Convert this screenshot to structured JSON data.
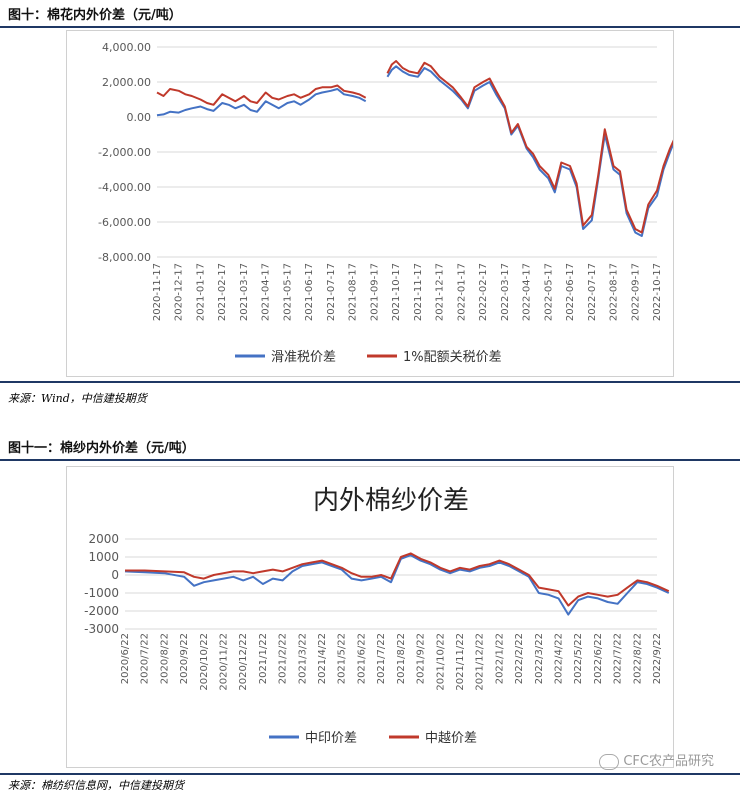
{
  "figures": [
    {
      "title": "图十：棉花内外价差（元/吨）",
      "source": "来源：Wind，中信建投期货"
    },
    {
      "title": "图十一：棉纱内外价差（元/吨）",
      "source": "来源：棉纺织信息网，中信建投期货"
    }
  ],
  "watermark": "CFC农产品研究",
  "chart_data": [
    {
      "type": "line",
      "title": "",
      "xlabel": "",
      "ylabel": "",
      "ylim": [
        -8000,
        4000
      ],
      "yticks": [
        "4,000.00",
        "2,000.00",
        "0.00",
        "-2,000.00",
        "-4,000.00",
        "-6,000.00",
        "-8,000.00"
      ],
      "ytick_values": [
        4000,
        2000,
        0,
        -2000,
        -4000,
        -6000,
        -8000
      ],
      "xticks": [
        "2020-11-17",
        "2020-12-17",
        "2021-01-17",
        "2021-02-17",
        "2021-03-17",
        "2021-04-17",
        "2021-05-17",
        "2021-06-17",
        "2021-07-17",
        "2021-08-17",
        "2021-09-17",
        "2021-10-17",
        "2021-11-17",
        "2021-12-17",
        "2022-01-17",
        "2022-02-17",
        "2022-03-17",
        "2022-04-17",
        "2022-05-17",
        "2022-06-17",
        "2022-07-17",
        "2022-08-17",
        "2022-09-17",
        "2022-10-17"
      ],
      "grid": "horizontal",
      "legend": "bottom",
      "colors": {
        "滑准税价差": "#4472c4",
        "1%配额关税价差": "#c0392b"
      },
      "series": [
        {
          "name": "滑准税价差",
          "x": [
            0,
            0.3,
            0.6,
            1.0,
            1.3,
            1.6,
            2.0,
            2.3,
            2.6,
            3.0,
            3.3,
            3.6,
            4.0,
            4.3,
            4.6,
            5.0,
            5.3,
            5.6,
            6.0,
            6.3,
            6.6,
            7.0,
            7.3,
            7.6,
            8.0,
            8.3,
            8.6,
            9.0,
            9.3,
            9.6,
            10.0,
            10.6,
            10.8,
            11.0,
            11.3,
            11.6,
            12.0,
            12.3,
            12.6,
            13.0,
            13.3,
            13.6,
            14.0,
            14.3,
            14.6,
            15.0,
            15.3,
            15.6,
            16.0,
            16.3,
            16.6,
            17.0,
            17.3,
            17.6,
            18.0,
            18.3,
            18.6,
            19.0,
            19.3,
            19.6,
            20.0,
            20.3,
            20.6,
            21.0,
            21.3,
            21.6,
            22.0,
            22.3,
            22.6,
            23.0,
            23.3,
            23.6,
            24.0
          ],
          "values": [
            100,
            150,
            300,
            250,
            400,
            500,
            600,
            450,
            350,
            800,
            700,
            500,
            700,
            400,
            300,
            900,
            700,
            500,
            800,
            900,
            700,
            1000,
            1300,
            1400,
            1500,
            1600,
            1300,
            1200,
            1100,
            900,
            null,
            2300,
            2700,
            2900,
            2600,
            2400,
            2300,
            2800,
            2600,
            2100,
            1800,
            1500,
            1000,
            500,
            1500,
            1800,
            2000,
            1300,
            500,
            -1000,
            -500,
            -1800,
            -2300,
            -3000,
            -3500,
            -4300,
            -2800,
            -3000,
            -4000,
            -6400,
            -5900,
            -3500,
            -1000,
            -3000,
            -3300,
            -5500,
            -6600,
            -6800,
            -5200,
            -4500,
            -3000,
            -2000,
            -800
          ]
        },
        {
          "name": "1%配额关税价差",
          "x": [
            0,
            0.3,
            0.6,
            1.0,
            1.3,
            1.6,
            2.0,
            2.3,
            2.6,
            3.0,
            3.3,
            3.6,
            4.0,
            4.3,
            4.6,
            5.0,
            5.3,
            5.6,
            6.0,
            6.3,
            6.6,
            7.0,
            7.3,
            7.6,
            8.0,
            8.3,
            8.6,
            9.0,
            9.3,
            9.6,
            10.0,
            10.6,
            10.8,
            11.0,
            11.3,
            11.6,
            12.0,
            12.3,
            12.6,
            13.0,
            13.3,
            13.6,
            14.0,
            14.3,
            14.6,
            15.0,
            15.3,
            15.6,
            16.0,
            16.3,
            16.6,
            17.0,
            17.3,
            17.6,
            18.0,
            18.3,
            18.6,
            19.0,
            19.3,
            19.6,
            20.0,
            20.3,
            20.6,
            21.0,
            21.3,
            21.6,
            22.0,
            22.3,
            22.6,
            23.0,
            23.3,
            23.6,
            24.0
          ],
          "values": [
            1400,
            1200,
            1600,
            1500,
            1300,
            1200,
            1000,
            800,
            700,
            1300,
            1100,
            900,
            1200,
            900,
            800,
            1400,
            1100,
            1000,
            1200,
            1300,
            1100,
            1300,
            1600,
            1700,
            1700,
            1800,
            1500,
            1400,
            1300,
            1100,
            null,
            2500,
            3000,
            3200,
            2800,
            2600,
            2500,
            3100,
            2900,
            2300,
            2000,
            1700,
            1100,
            600,
            1700,
            2000,
            2200,
            1500,
            600,
            -900,
            -400,
            -1700,
            -2100,
            -2800,
            -3300,
            -4100,
            -2600,
            -2800,
            -3800,
            -6200,
            -5600,
            -3300,
            -700,
            -2800,
            -3100,
            -5300,
            -6400,
            -6600,
            -5000,
            -4200,
            -2800,
            -1800,
            -700
          ]
        }
      ]
    },
    {
      "type": "line",
      "title": "内外棉纱价差",
      "xlabel": "",
      "ylabel": "",
      "ylim": [
        -3000,
        2000
      ],
      "yticks": [
        "2000",
        "1000",
        "0",
        "-1000",
        "-2000",
        "-3000"
      ],
      "ytick_values": [
        2000,
        1000,
        0,
        -1000,
        -2000,
        -3000
      ],
      "xticks": [
        "2020/6/22",
        "2020/7/22",
        "2020/8/22",
        "2020/9/22",
        "2020/10/22",
        "2020/11/22",
        "2020/12/22",
        "2021/1/22",
        "2021/2/22",
        "2021/3/22",
        "2021/4/22",
        "2021/5/22",
        "2021/6/22",
        "2021/7/22",
        "2021/8/22",
        "2021/9/22",
        "2021/10/22",
        "2021/11/22",
        "2021/12/22",
        "2022/1/22",
        "2022/2/22",
        "2022/3/22",
        "2022/4/22",
        "2022/5/22",
        "2022/6/22",
        "2022/7/22",
        "2022/8/22",
        "2022/9/22"
      ],
      "grid": "horizontal",
      "legend": "bottom",
      "colors": {
        "中印价差": "#4472c4",
        "中越价差": "#c0392b"
      },
      "series": [
        {
          "name": "中印价差",
          "x": [
            0,
            1,
            2,
            3,
            3.5,
            4,
            4.5,
            5,
            5.5,
            6,
            6.5,
            7,
            7.5,
            8,
            8.5,
            9,
            9.5,
            10,
            10.5,
            11,
            11.5,
            12,
            12.5,
            13,
            13.5,
            14,
            14.5,
            15,
            15.5,
            16,
            16.5,
            17,
            17.5,
            18,
            18.5,
            19,
            19.5,
            20,
            20.5,
            21,
            21.5,
            22,
            22.5,
            23,
            23.5,
            24,
            24.5,
            25,
            25.5,
            26,
            26.5,
            27,
            27.6
          ],
          "values": [
            200,
            150,
            100,
            -100,
            -600,
            -400,
            -300,
            -200,
            -100,
            -300,
            -100,
            -500,
            -200,
            -300,
            200,
            500,
            600,
            700,
            500,
            300,
            -200,
            -300,
            -200,
            -100,
            -400,
            900,
            1100,
            800,
            600,
            300,
            100,
            300,
            200,
            400,
            500,
            700,
            500,
            200,
            -100,
            -1000,
            -1100,
            -1300,
            -2200,
            -1400,
            -1200,
            -1300,
            -1500,
            -1600,
            -1000,
            -400,
            -500,
            -700,
            -1000
          ]
        },
        {
          "name": "中越价差",
          "x": [
            0,
            1,
            2,
            3,
            3.5,
            4,
            4.5,
            5,
            5.5,
            6,
            6.5,
            7,
            7.5,
            8,
            8.5,
            9,
            9.5,
            10,
            10.5,
            11,
            11.5,
            12,
            12.5,
            13,
            13.5,
            14,
            14.5,
            15,
            15.5,
            16,
            16.5,
            17,
            17.5,
            18,
            18.5,
            19,
            19.5,
            20,
            20.5,
            21,
            21.5,
            22,
            22.5,
            23,
            23.5,
            24,
            24.5,
            25,
            25.5,
            26,
            26.5,
            27,
            27.6
          ],
          "values": [
            250,
            250,
            200,
            150,
            -100,
            -200,
            0,
            100,
            200,
            200,
            100,
            200,
            300,
            200,
            400,
            600,
            700,
            800,
            600,
            400,
            100,
            -100,
            -100,
            0,
            -200,
            1000,
            1200,
            900,
            700,
            400,
            200,
            400,
            300,
            500,
            600,
            800,
            600,
            300,
            0,
            -700,
            -800,
            -900,
            -1700,
            -1200,
            -1000,
            -1100,
            -1200,
            -1100,
            -700,
            -300,
            -400,
            -600,
            -900
          ]
        }
      ]
    }
  ]
}
